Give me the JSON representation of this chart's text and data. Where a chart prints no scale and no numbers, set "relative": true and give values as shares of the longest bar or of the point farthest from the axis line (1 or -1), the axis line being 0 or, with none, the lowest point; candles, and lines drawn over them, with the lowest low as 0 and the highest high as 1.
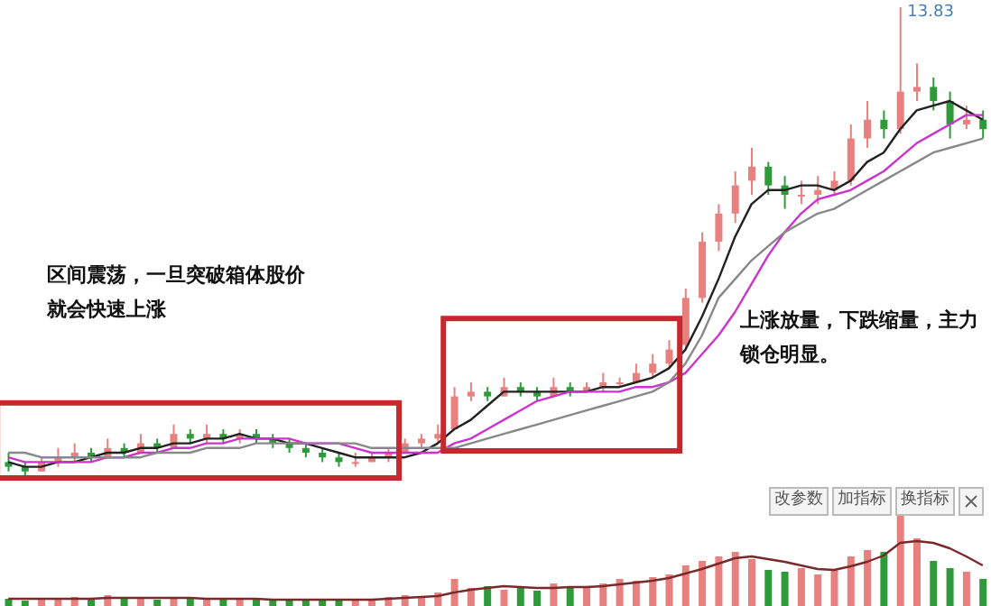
{
  "chart_data": [
    {
      "type": "candlestick",
      "relative": true,
      "categories": [
        null,
        null,
        null,
        null,
        null,
        null,
        null,
        null,
        null,
        null,
        null,
        null,
        null,
        null,
        null,
        null,
        null,
        null,
        null,
        null,
        null,
        null,
        null,
        null,
        null,
        null,
        null,
        null,
        null,
        null,
        null,
        null,
        null,
        null,
        null,
        null,
        null,
        null,
        null,
        null,
        null,
        null,
        null,
        null,
        null,
        null,
        null,
        null,
        null,
        null,
        null,
        null,
        null,
        null,
        null,
        null,
        null,
        null,
        null,
        null
      ],
      "ohlc": [
        [
          0.03,
          0.05,
          0.01,
          0.02
        ],
        [
          0.02,
          0.03,
          0.0,
          0.01
        ],
        [
          0.01,
          0.04,
          0.01,
          0.03
        ],
        [
          0.03,
          0.06,
          0.02,
          0.04
        ],
        [
          0.04,
          0.07,
          0.03,
          0.05
        ],
        [
          0.05,
          0.06,
          0.03,
          0.04
        ],
        [
          0.04,
          0.08,
          0.04,
          0.06
        ],
        [
          0.06,
          0.07,
          0.04,
          0.05
        ],
        [
          0.05,
          0.09,
          0.05,
          0.07
        ],
        [
          0.07,
          0.08,
          0.05,
          0.06
        ],
        [
          0.06,
          0.11,
          0.06,
          0.09
        ],
        [
          0.09,
          0.1,
          0.07,
          0.08
        ],
        [
          0.08,
          0.11,
          0.07,
          0.09
        ],
        [
          0.09,
          0.1,
          0.07,
          0.08
        ],
        [
          0.08,
          0.1,
          0.07,
          0.09
        ],
        [
          0.09,
          0.1,
          0.07,
          0.08
        ],
        [
          0.08,
          0.09,
          0.06,
          0.07
        ],
        [
          0.07,
          0.08,
          0.05,
          0.06
        ],
        [
          0.06,
          0.07,
          0.04,
          0.05
        ],
        [
          0.05,
          0.06,
          0.03,
          0.04
        ],
        [
          0.04,
          0.05,
          0.02,
          0.03
        ],
        [
          0.03,
          0.05,
          0.02,
          0.03
        ],
        [
          0.03,
          0.05,
          0.03,
          0.04
        ],
        [
          0.04,
          0.06,
          0.03,
          0.05
        ],
        [
          0.05,
          0.08,
          0.05,
          0.07
        ],
        [
          0.07,
          0.09,
          0.06,
          0.08
        ],
        [
          0.08,
          0.11,
          0.07,
          0.09
        ],
        [
          0.1,
          0.19,
          0.1,
          0.17
        ],
        [
          0.17,
          0.2,
          0.16,
          0.18
        ],
        [
          0.18,
          0.19,
          0.16,
          0.17
        ],
        [
          0.17,
          0.21,
          0.17,
          0.19
        ],
        [
          0.19,
          0.2,
          0.17,
          0.18
        ],
        [
          0.18,
          0.19,
          0.16,
          0.17
        ],
        [
          0.17,
          0.21,
          0.17,
          0.19
        ],
        [
          0.19,
          0.2,
          0.17,
          0.18
        ],
        [
          0.18,
          0.2,
          0.18,
          0.19
        ],
        [
          0.19,
          0.22,
          0.18,
          0.2
        ],
        [
          0.2,
          0.21,
          0.19,
          0.2
        ],
        [
          0.2,
          0.24,
          0.2,
          0.22
        ],
        [
          0.22,
          0.26,
          0.21,
          0.24
        ],
        [
          0.24,
          0.29,
          0.23,
          0.27
        ],
        [
          0.28,
          0.4,
          0.27,
          0.38
        ],
        [
          0.38,
          0.52,
          0.37,
          0.5
        ],
        [
          0.5,
          0.58,
          0.48,
          0.56
        ],
        [
          0.56,
          0.65,
          0.54,
          0.62
        ],
        [
          0.63,
          0.7,
          0.6,
          0.66
        ],
        [
          0.66,
          0.67,
          0.6,
          0.62
        ],
        [
          0.62,
          0.64,
          0.57,
          0.6
        ],
        [
          0.6,
          0.63,
          0.58,
          0.6
        ],
        [
          0.6,
          0.64,
          0.58,
          0.61
        ],
        [
          0.61,
          0.65,
          0.6,
          0.63
        ],
        [
          0.63,
          0.75,
          0.62,
          0.72
        ],
        [
          0.72,
          0.8,
          0.7,
          0.76
        ],
        [
          0.76,
          0.78,
          0.72,
          0.74
        ],
        [
          0.74,
          1.0,
          0.73,
          0.82
        ],
        [
          0.82,
          0.88,
          0.8,
          0.83
        ],
        [
          0.83,
          0.85,
          0.78,
          0.8
        ],
        [
          0.8,
          0.82,
          0.72,
          0.75
        ],
        [
          0.75,
          0.79,
          0.74,
          0.76
        ],
        [
          0.76,
          0.78,
          0.72,
          0.74
        ]
      ],
      "colors": [
        "#2f9a3a",
        "#2f9a3a",
        "#e8807f",
        "#e8807f",
        "#e8807f",
        "#2f9a3a",
        "#e8807f",
        "#2f9a3a",
        "#e8807f",
        "#2f9a3a",
        "#e8807f",
        "#2f9a3a",
        "#e8807f",
        "#2f9a3a",
        "#e8807f",
        "#2f9a3a",
        "#2f9a3a",
        "#2f9a3a",
        "#2f9a3a",
        "#2f9a3a",
        "#2f9a3a",
        "#e8807f",
        "#e8807f",
        "#e8807f",
        "#e8807f",
        "#e8807f",
        "#e8807f",
        "#e8807f",
        "#e8807f",
        "#2f9a3a",
        "#e8807f",
        "#2f9a3a",
        "#2f9a3a",
        "#e8807f",
        "#2f9a3a",
        "#e8807f",
        "#e8807f",
        "#e8807f",
        "#e8807f",
        "#e8807f",
        "#e8807f",
        "#e8807f",
        "#e8807f",
        "#e8807f",
        "#e8807f",
        "#e8807f",
        "#2f9a3a",
        "#2f9a3a",
        "#e8807f",
        "#e8807f",
        "#e8807f",
        "#e8807f",
        "#e8807f",
        "#2f9a3a",
        "#e8807f",
        "#e8807f",
        "#2f9a3a",
        "#2f9a3a",
        "#e8807f",
        "#2f9a3a"
      ],
      "series": [
        {
          "type": "line",
          "color": "#222222",
          "values": [
            0.03,
            0.02,
            0.02,
            0.03,
            0.03,
            0.04,
            0.05,
            0.05,
            0.06,
            0.06,
            0.07,
            0.07,
            0.08,
            0.08,
            0.09,
            0.08,
            0.08,
            0.07,
            0.07,
            0.06,
            0.05,
            0.04,
            0.04,
            0.04,
            0.04,
            0.05,
            0.07,
            0.1,
            0.12,
            0.15,
            0.18,
            0.18,
            0.18,
            0.18,
            0.18,
            0.18,
            0.19,
            0.19,
            0.2,
            0.21,
            0.23,
            0.27,
            0.34,
            0.42,
            0.51,
            0.58,
            0.61,
            0.61,
            0.62,
            0.62,
            0.61,
            0.63,
            0.67,
            0.69,
            0.74,
            0.78,
            0.79,
            0.8,
            0.78,
            0.76
          ]
        },
        {
          "type": "line",
          "color": "#cc33cc",
          "values": [
            0.04,
            0.03,
            0.03,
            0.03,
            0.03,
            0.03,
            0.04,
            0.04,
            0.05,
            0.05,
            0.06,
            0.06,
            0.07,
            0.07,
            0.08,
            0.08,
            0.08,
            0.08,
            0.07,
            0.07,
            0.07,
            0.06,
            0.05,
            0.05,
            0.05,
            0.05,
            0.05,
            0.07,
            0.08,
            0.1,
            0.12,
            0.14,
            0.16,
            0.17,
            0.18,
            0.18,
            0.18,
            0.18,
            0.19,
            0.19,
            0.2,
            0.22,
            0.26,
            0.3,
            0.35,
            0.41,
            0.47,
            0.52,
            0.56,
            0.59,
            0.6,
            0.61,
            0.63,
            0.65,
            0.68,
            0.71,
            0.73,
            0.75,
            0.77,
            0.77
          ]
        },
        {
          "type": "line",
          "color": "#888888",
          "values": [
            0.05,
            0.05,
            0.04,
            0.04,
            0.04,
            0.04,
            0.04,
            0.04,
            0.04,
            0.05,
            0.05,
            0.05,
            0.06,
            0.06,
            0.06,
            0.07,
            0.07,
            0.07,
            0.07,
            0.07,
            0.07,
            0.07,
            0.06,
            0.06,
            0.06,
            0.06,
            0.06,
            0.06,
            0.07,
            0.08,
            0.09,
            0.1,
            0.11,
            0.12,
            0.13,
            0.14,
            0.15,
            0.16,
            0.17,
            0.18,
            0.2,
            0.24,
            0.3,
            0.38,
            0.42,
            0.46,
            0.49,
            0.52,
            0.54,
            0.56,
            0.57,
            0.59,
            0.61,
            0.63,
            0.65,
            0.67,
            0.69,
            0.7,
            0.71,
            0.72
          ]
        }
      ],
      "annotations": [
        "13.83",
        "区间震荡，一旦突破箱体股价",
        "就会快速上涨",
        "上涨放量，下跌缩量，主力",
        "锁仓明显。"
      ]
    },
    {
      "type": "bar",
      "relative": true,
      "categories": [
        null,
        null,
        null,
        null,
        null,
        null,
        null,
        null,
        null,
        null,
        null,
        null,
        null,
        null,
        null,
        null,
        null,
        null,
        null,
        null,
        null,
        null,
        null,
        null,
        null,
        null,
        null,
        null,
        null,
        null,
        null,
        null,
        null,
        null,
        null,
        null,
        null,
        null,
        null,
        null,
        null,
        null,
        null,
        null,
        null,
        null,
        null,
        null,
        null,
        null,
        null,
        null,
        null,
        null,
        null,
        null,
        null,
        null,
        null,
        null
      ],
      "values": [
        0.08,
        0.06,
        0.07,
        0.08,
        0.1,
        0.07,
        0.12,
        0.08,
        0.09,
        0.07,
        0.1,
        0.08,
        0.09,
        0.07,
        0.08,
        0.07,
        0.06,
        0.07,
        0.06,
        0.07,
        0.06,
        0.07,
        0.08,
        0.1,
        0.12,
        0.1,
        0.15,
        0.3,
        0.2,
        0.22,
        0.18,
        0.2,
        0.17,
        0.25,
        0.2,
        0.22,
        0.25,
        0.3,
        0.28,
        0.32,
        0.35,
        0.45,
        0.5,
        0.55,
        0.6,
        0.52,
        0.4,
        0.38,
        0.42,
        0.35,
        0.4,
        0.55,
        0.62,
        0.6,
        1.0,
        0.75,
        0.5,
        0.42,
        0.38,
        0.3
      ],
      "colors": [
        "#2f9a3a",
        "#2f9a3a",
        "#e8807f",
        "#e8807f",
        "#e8807f",
        "#2f9a3a",
        "#e8807f",
        "#2f9a3a",
        "#e8807f",
        "#2f9a3a",
        "#e8807f",
        "#2f9a3a",
        "#e8807f",
        "#2f9a3a",
        "#e8807f",
        "#2f9a3a",
        "#2f9a3a",
        "#2f9a3a",
        "#2f9a3a",
        "#2f9a3a",
        "#2f9a3a",
        "#e8807f",
        "#e8807f",
        "#e8807f",
        "#e8807f",
        "#e8807f",
        "#e8807f",
        "#e8807f",
        "#e8807f",
        "#2f9a3a",
        "#e8807f",
        "#2f9a3a",
        "#2f9a3a",
        "#e8807f",
        "#2f9a3a",
        "#e8807f",
        "#e8807f",
        "#e8807f",
        "#e8807f",
        "#e8807f",
        "#e8807f",
        "#e8807f",
        "#e8807f",
        "#e8807f",
        "#e8807f",
        "#e8807f",
        "#2f9a3a",
        "#2f9a3a",
        "#e8807f",
        "#e8807f",
        "#e8807f",
        "#e8807f",
        "#e8807f",
        "#2f9a3a",
        "#e8807f",
        "#e8807f",
        "#2f9a3a",
        "#2f9a3a",
        "#e8807f",
        "#2f9a3a"
      ],
      "series": [
        {
          "type": "line",
          "color": "#7a2a2a",
          "values": [
            0.08,
            0.08,
            0.08,
            0.08,
            0.08,
            0.08,
            0.09,
            0.09,
            0.09,
            0.09,
            0.09,
            0.09,
            0.08,
            0.08,
            0.08,
            0.08,
            0.07,
            0.07,
            0.07,
            0.07,
            0.07,
            0.07,
            0.07,
            0.08,
            0.09,
            0.1,
            0.11,
            0.15,
            0.18,
            0.2,
            0.22,
            0.21,
            0.2,
            0.2,
            0.21,
            0.21,
            0.22,
            0.24,
            0.26,
            0.28,
            0.31,
            0.36,
            0.41,
            0.47,
            0.53,
            0.55,
            0.52,
            0.49,
            0.45,
            0.41,
            0.4,
            0.44,
            0.49,
            0.56,
            0.7,
            0.72,
            0.7,
            0.64,
            0.55,
            0.45
          ]
        }
      ],
      "annotations": [
        "改参数",
        "加指标",
        "换指标"
      ]
    }
  ]
}
